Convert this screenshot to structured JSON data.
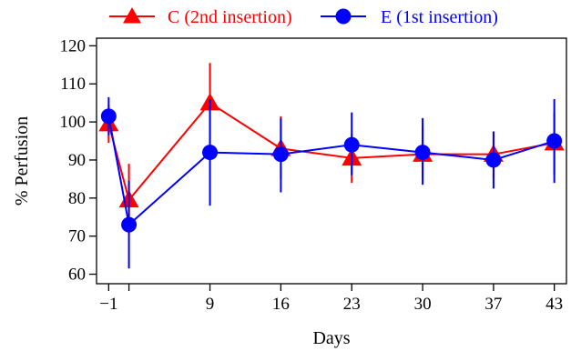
{
  "chart_data": {
    "type": "line",
    "title": "",
    "xlabel": "Days",
    "ylabel": "% Perfusion",
    "x_ticks": [
      -1,
      9,
      16,
      23,
      30,
      37,
      43
    ],
    "x_tick_labels": [
      "−1",
      "9",
      "16",
      "23",
      "30",
      "37",
      "43"
    ],
    "y_ticks": [
      60,
      70,
      80,
      90,
      100,
      110,
      120
    ],
    "y_tick_labels": [
      "60",
      "70",
      "80",
      "90",
      "100",
      "110",
      "120"
    ],
    "xlim": [
      -2.2,
      44.2
    ],
    "ylim": [
      57.5,
      122
    ],
    "grid": false,
    "legend_position": "top",
    "series": [
      {
        "name": "C (2nd insertion)",
        "marker": "triangle",
        "color": "#ff0000",
        "x": [
          -1,
          1,
          9,
          16,
          23,
          30,
          37,
          43
        ],
        "y": [
          99.5,
          79.5,
          105,
          93,
          90.5,
          91.5,
          91.5,
          94.5
        ],
        "err_low": [
          94.5,
          70.5,
          94.5,
          85,
          84,
          85,
          85,
          86
        ],
        "err_high": [
          104.5,
          89,
          115.5,
          101.5,
          97,
          99,
          97.5,
          102.5
        ]
      },
      {
        "name": "E (1st insertion)",
        "marker": "circle",
        "color": "#0000ff",
        "x": [
          -1,
          1,
          9,
          16,
          23,
          30,
          37,
          43
        ],
        "y": [
          101.5,
          73,
          92,
          91.5,
          94,
          92,
          90,
          95
        ],
        "err_low": [
          96.5,
          61.5,
          78,
          81.5,
          86,
          83.5,
          82.5,
          84
        ],
        "err_high": [
          106.5,
          84.5,
          106,
          101,
          102.5,
          101,
          97.5,
          106
        ]
      }
    ]
  }
}
